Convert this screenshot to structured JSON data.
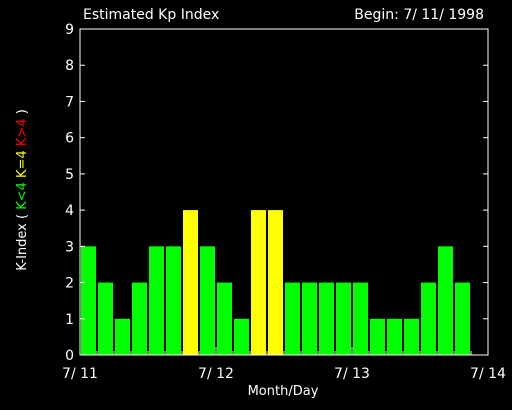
{
  "chart_data": {
    "type": "bar",
    "title": "Estimated Kp Index",
    "subtitle": "Begin: 7/ 11/ 1998",
    "xlabel": "Month/Day",
    "ylabel_parts": [
      {
        "text": "K-Index",
        "color": "#ffffff"
      },
      {
        "text": "(",
        "color": "#ffffff"
      },
      {
        "text": "K<4",
        "color": "#00ff00"
      },
      {
        "text": "K=4",
        "color": "#ffff00"
      },
      {
        "text": "K>4",
        "color": "#ff0000"
      },
      {
        "text": ")",
        "color": "#ffffff"
      }
    ],
    "ylim": [
      0,
      9
    ],
    "yticks": [
      0,
      1,
      2,
      3,
      4,
      5,
      6,
      7,
      8,
      9
    ],
    "xlim": [
      0,
      72
    ],
    "xtick_positions": [
      0,
      24,
      48,
      72
    ],
    "xtick_labels": [
      "7/ 11",
      "7/ 12",
      "7/ 13",
      "7/ 14"
    ],
    "bar_hours": [
      0,
      3,
      6,
      9,
      12,
      15,
      18,
      21,
      24,
      27,
      30,
      33,
      36,
      39,
      42,
      45,
      48,
      51,
      54,
      57,
      60,
      63,
      66,
      69
    ],
    "bar_width_hours": 3,
    "values": [
      3,
      2,
      1,
      2,
      3,
      3,
      4,
      3,
      2,
      1,
      4,
      4,
      2,
      2,
      2,
      2,
      2,
      1,
      1,
      1,
      2,
      3,
      2,
      0
    ],
    "colors": {
      "below": "#00ff00",
      "equal": "#ffff00",
      "above": "#ff0000",
      "axes": "#ffffff",
      "background": "#000000"
    }
  }
}
